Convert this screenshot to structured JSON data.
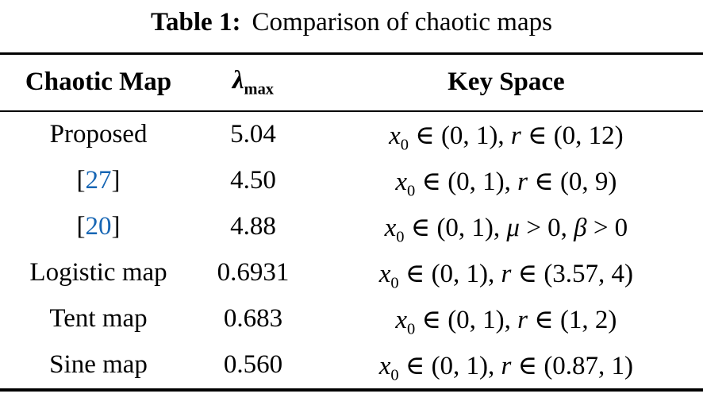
{
  "caption": {
    "label": "Table 1:",
    "text": "Comparison of chaotic maps"
  },
  "table": {
    "header": {
      "chaotic_map": "Chaotic Map",
      "lambda_symbol": "λ",
      "lambda_subscript": "max",
      "key_space": "Key Space"
    },
    "citation_brackets": {
      "open": "[",
      "close": "]"
    },
    "rows": [
      {
        "map": {
          "text": "Proposed",
          "citation": false
        },
        "lambda_max": "5.04",
        "key_space": [
          {
            "type": "var",
            "text": "x"
          },
          {
            "type": "sub",
            "text": "0"
          },
          {
            "type": "txt",
            "text": " ∈ (0, 1), "
          },
          {
            "type": "var",
            "text": "r"
          },
          {
            "type": "txt",
            "text": " ∈ (0, 12)"
          }
        ]
      },
      {
        "map": {
          "text": "27",
          "citation": true
        },
        "lambda_max": "4.50",
        "key_space": [
          {
            "type": "var",
            "text": "x"
          },
          {
            "type": "sub",
            "text": "0"
          },
          {
            "type": "txt",
            "text": " ∈ (0, 1), "
          },
          {
            "type": "var",
            "text": "r"
          },
          {
            "type": "txt",
            "text": " ∈ (0, 9)"
          }
        ]
      },
      {
        "map": {
          "text": "20",
          "citation": true
        },
        "lambda_max": "4.88",
        "key_space": [
          {
            "type": "var",
            "text": "x"
          },
          {
            "type": "sub",
            "text": "0"
          },
          {
            "type": "txt",
            "text": " ∈ (0, 1), "
          },
          {
            "type": "var",
            "text": "μ"
          },
          {
            "type": "txt",
            "text": " > 0, "
          },
          {
            "type": "var",
            "text": "β"
          },
          {
            "type": "txt",
            "text": " > 0"
          }
        ]
      },
      {
        "map": {
          "text": "Logistic map",
          "citation": false
        },
        "lambda_max": "0.6931",
        "key_space": [
          {
            "type": "var",
            "text": "x"
          },
          {
            "type": "sub",
            "text": "0"
          },
          {
            "type": "txt",
            "text": " ∈ (0, 1), "
          },
          {
            "type": "var",
            "text": "r"
          },
          {
            "type": "txt",
            "text": " ∈ (3.57, 4)"
          }
        ]
      },
      {
        "map": {
          "text": "Tent map",
          "citation": false
        },
        "lambda_max": "0.683",
        "key_space": [
          {
            "type": "var",
            "text": "x"
          },
          {
            "type": "sub",
            "text": "0"
          },
          {
            "type": "txt",
            "text": " ∈ (0, 1), "
          },
          {
            "type": "var",
            "text": "r"
          },
          {
            "type": "txt",
            "text": " ∈ (1, 2)"
          }
        ]
      },
      {
        "map": {
          "text": "Sine map",
          "citation": false
        },
        "lambda_max": "0.560",
        "key_space": [
          {
            "type": "var",
            "text": "x"
          },
          {
            "type": "sub",
            "text": "0"
          },
          {
            "type": "txt",
            "text": " ∈ (0, 1), "
          },
          {
            "type": "var",
            "text": "r"
          },
          {
            "type": "txt",
            "text": " ∈ (0.87, 1)"
          }
        ]
      }
    ]
  },
  "colors": {
    "citation_blue": "#1766b4",
    "text": "#000000",
    "background": "#ffffff"
  }
}
